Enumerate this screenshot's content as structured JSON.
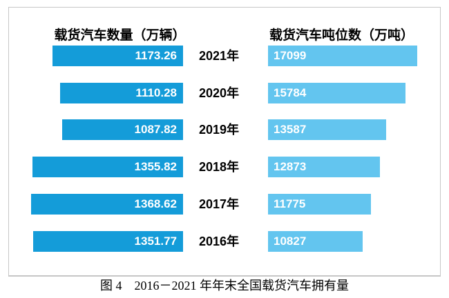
{
  "figure": {
    "border_color": "#C6C6C6",
    "background": "#FFFFFF"
  },
  "chart_data": {
    "type": "bar",
    "variant": "tornado-horizontal",
    "grid": false,
    "legend_position": "column-headers-top",
    "categories": [
      "2021年",
      "2020年",
      "2019年",
      "2018年",
      "2017年",
      "2016年"
    ],
    "series": [
      {
        "name": "载货汽车数量（万辆）",
        "side": "left",
        "color": "#149CD9",
        "value_decimals": 2,
        "values": [
          1173.26,
          1110.28,
          1087.82,
          1355.82,
          1368.62,
          1351.77
        ]
      },
      {
        "name": "载货汽车吨位数（万吨）",
        "side": "right",
        "color": "#63C5EF",
        "value_decimals": 0,
        "values": [
          17099,
          15784,
          13587,
          12873,
          11775,
          10827
        ]
      }
    ],
    "value_labels_inside_bars": true,
    "caption": "图 4　2016－2021 年年末全国载货汽车拥有量"
  },
  "layout_note": {
    "value_text_color": "#FFFFFF"
  }
}
